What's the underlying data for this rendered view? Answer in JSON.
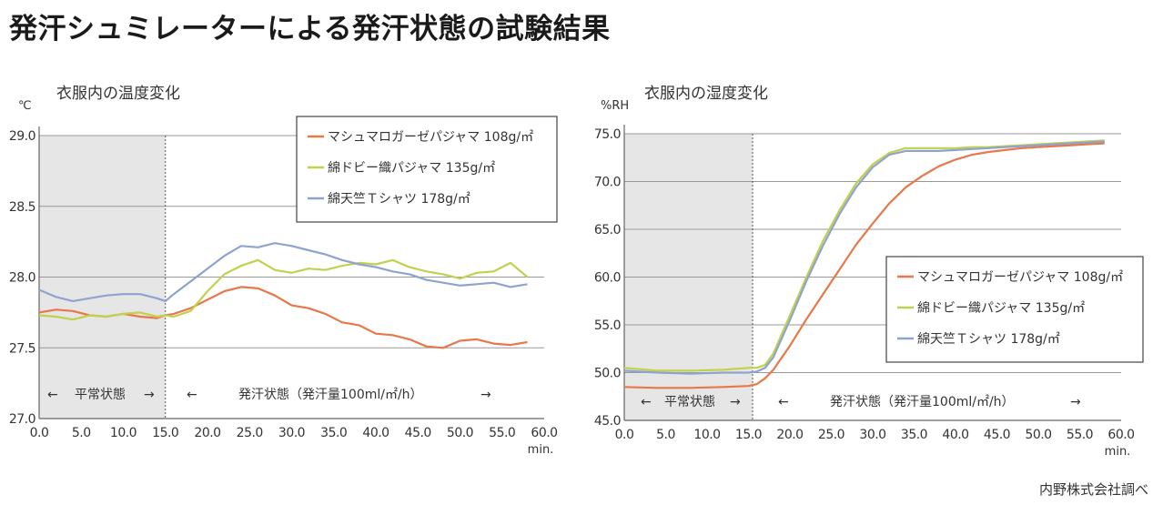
{
  "page": {
    "title": "発汗シュミレーターによる発汗状態の試験結果",
    "source": "内野株式会社調べ"
  },
  "chart_data": [
    {
      "type": "line",
      "title": "衣服内の温度変化",
      "ylabel": "℃",
      "xlabel": "min.",
      "xlim": [
        0,
        60
      ],
      "ylim": [
        27.0,
        29.0
      ],
      "xticks": [
        "0.0",
        "5.0",
        "10.0",
        "15.0",
        "20.0",
        "25.0",
        "30.0",
        "35.0",
        "40.0",
        "45.0",
        "50.0",
        "55.0",
        "60.0"
      ],
      "yticks": [
        "27.0",
        "27.5",
        "28.0",
        "28.5",
        "29.0"
      ],
      "grid": true,
      "legend_position": "top-right",
      "shaded_region": [
        0,
        15
      ],
      "annotations": {
        "phase_normal": "平常状態",
        "phase_sweat": "発汗状態（発汗量100ml/㎡/h）",
        "arrow_left": "←",
        "arrow_right": "→"
      },
      "series": [
        {
          "name": "マシュマロガーゼパジャマ 108g/㎡",
          "color": "#e8774a",
          "x": [
            0,
            2,
            4,
            6,
            8,
            10,
            12,
            14,
            15,
            16,
            18,
            20,
            22,
            24,
            26,
            28,
            30,
            32,
            34,
            36,
            38,
            40,
            42,
            44,
            46,
            48,
            50,
            52,
            54,
            56,
            58
          ],
          "y": [
            27.75,
            27.77,
            27.76,
            27.73,
            27.72,
            27.74,
            27.72,
            27.71,
            27.73,
            27.74,
            27.78,
            27.84,
            27.9,
            27.93,
            27.92,
            27.87,
            27.8,
            27.78,
            27.74,
            27.68,
            27.66,
            27.6,
            27.59,
            27.56,
            27.51,
            27.5,
            27.55,
            27.56,
            27.53,
            27.52,
            27.54
          ]
        },
        {
          "name": "綿ドビー織パジャマ 135g/㎡",
          "color": "#c2d14d",
          "x": [
            0,
            2,
            4,
            6,
            8,
            10,
            12,
            14,
            15,
            16,
            18,
            20,
            22,
            24,
            26,
            28,
            30,
            32,
            34,
            36,
            38,
            40,
            42,
            44,
            46,
            48,
            50,
            52,
            54,
            56,
            58
          ],
          "y": [
            27.73,
            27.72,
            27.7,
            27.73,
            27.72,
            27.74,
            27.75,
            27.72,
            27.73,
            27.72,
            27.76,
            27.9,
            28.02,
            28.08,
            28.12,
            28.05,
            28.03,
            28.06,
            28.05,
            28.08,
            28.1,
            28.09,
            28.12,
            28.07,
            28.04,
            28.02,
            27.99,
            28.03,
            28.04,
            28.1,
            28.0
          ]
        },
        {
          "name": "綿天竺Ｔシャツ 178g/㎡",
          "color": "#8fa3cf",
          "x": [
            0,
            2,
            4,
            6,
            8,
            10,
            12,
            14,
            15,
            16,
            18,
            20,
            22,
            24,
            26,
            28,
            30,
            32,
            34,
            36,
            38,
            40,
            42,
            44,
            46,
            48,
            50,
            52,
            54,
            56,
            58
          ],
          "y": [
            27.91,
            27.86,
            27.83,
            27.85,
            27.87,
            27.88,
            27.88,
            27.85,
            27.83,
            27.88,
            27.97,
            28.06,
            28.15,
            28.22,
            28.21,
            28.24,
            28.22,
            28.19,
            28.16,
            28.12,
            28.09,
            28.07,
            28.04,
            28.02,
            27.98,
            27.96,
            27.94,
            27.95,
            27.96,
            27.93,
            27.95
          ]
        }
      ]
    },
    {
      "type": "line",
      "title": "衣服内の湿度変化",
      "ylabel": "%RH",
      "xlabel": "min.",
      "xlim": [
        0,
        60
      ],
      "ylim": [
        45.0,
        75.0
      ],
      "xticks": [
        "0.0",
        "5.0",
        "10.0",
        "15.0",
        "20.0",
        "25.0",
        "30.0",
        "35.0",
        "40.0",
        "45.0",
        "50.0",
        "55.0",
        "60.0"
      ],
      "yticks": [
        "45.0",
        "50.0",
        "55.0",
        "60.0",
        "65.0",
        "70.0",
        "75.0"
      ],
      "grid": true,
      "legend_position": "center-right",
      "shaded_region": [
        0,
        15.5
      ],
      "annotations": {
        "phase_normal": "平常状態",
        "phase_sweat": "発汗状態（発汗量100ml/㎡/h）",
        "arrow_left": "←",
        "arrow_right": "→"
      },
      "series": [
        {
          "name": "マシュマロガーゼパジャマ 108g/㎡",
          "color": "#e8774a",
          "x": [
            0,
            4,
            8,
            12,
            15,
            16,
            17,
            18,
            20,
            22,
            24,
            26,
            28,
            30,
            32,
            34,
            36,
            38,
            40,
            42,
            44,
            46,
            48,
            50,
            52,
            54,
            56,
            58
          ],
          "y": [
            48.5,
            48.4,
            48.4,
            48.5,
            48.6,
            48.8,
            49.4,
            50.3,
            52.8,
            55.6,
            58.2,
            60.8,
            63.4,
            65.6,
            67.7,
            69.4,
            70.6,
            71.6,
            72.3,
            72.8,
            73.1,
            73.3,
            73.5,
            73.6,
            73.7,
            73.8,
            73.9,
            74.0
          ]
        },
        {
          "name": "綿ドビー織パジャマ 135g/㎡",
          "color": "#c2d14d",
          "x": [
            0,
            4,
            8,
            12,
            15,
            16,
            17,
            18,
            20,
            22,
            24,
            26,
            28,
            30,
            32,
            34,
            36,
            38,
            40,
            42,
            44,
            46,
            48,
            50,
            52,
            54,
            56,
            58
          ],
          "y": [
            50.5,
            50.2,
            50.2,
            50.3,
            50.5,
            50.5,
            50.8,
            52.0,
            56.0,
            60.0,
            63.8,
            67.0,
            69.8,
            71.8,
            73.0,
            73.5,
            73.5,
            73.5,
            73.5,
            73.6,
            73.6,
            73.7,
            73.8,
            73.9,
            74.0,
            74.1,
            74.2,
            74.3
          ]
        },
        {
          "name": "綿天竺Ｔシャツ 178g/㎡",
          "color": "#8fa3cf",
          "x": [
            0,
            4,
            8,
            12,
            15,
            16,
            17,
            18,
            20,
            22,
            24,
            26,
            28,
            30,
            32,
            34,
            36,
            38,
            40,
            42,
            44,
            46,
            48,
            50,
            52,
            54,
            56,
            58
          ],
          "y": [
            50.2,
            50.0,
            49.9,
            50.0,
            50.0,
            50.1,
            50.5,
            51.6,
            55.5,
            59.6,
            63.3,
            66.6,
            69.4,
            71.5,
            72.8,
            73.2,
            73.2,
            73.2,
            73.3,
            73.4,
            73.5,
            73.6,
            73.7,
            73.8,
            73.9,
            74.0,
            74.1,
            74.2
          ]
        }
      ]
    }
  ]
}
